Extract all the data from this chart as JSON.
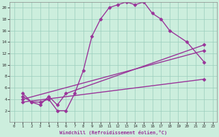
{
  "xlabel": "Windchill (Refroidissement éolien,°C)",
  "bg_color": "#cceedd",
  "line_color": "#993399",
  "grid_color": "#99ccbb",
  "xlim_min": -0.5,
  "xlim_max": 23.5,
  "ylim_min": 0,
  "ylim_max": 21,
  "xticks": [
    0,
    1,
    2,
    3,
    4,
    5,
    6,
    7,
    8,
    9,
    10,
    11,
    12,
    13,
    14,
    15,
    16,
    17,
    18,
    19,
    20,
    21,
    22,
    23
  ],
  "yticks": [
    2,
    4,
    6,
    8,
    10,
    12,
    14,
    16,
    18,
    20
  ],
  "curve1_x": [
    1,
    2,
    3,
    4,
    5,
    6,
    7,
    8,
    9,
    10,
    11,
    12,
    13,
    14,
    15,
    16,
    17,
    18,
    20,
    22
  ],
  "curve1_y": [
    5,
    3.5,
    3.5,
    4,
    2,
    2,
    5,
    9,
    15,
    18,
    20,
    20.5,
    21,
    20.5,
    21,
    19,
    18,
    16,
    14,
    10.5
  ],
  "curve2_x": [
    1,
    2,
    3,
    4,
    5,
    6,
    22
  ],
  "curve2_y": [
    4.5,
    3.5,
    3,
    4.5,
    3,
    5,
    13.5
  ],
  "curve3_x": [
    1,
    22
  ],
  "curve3_y": [
    4,
    12.5
  ],
  "curve4_x": [
    1,
    22
  ],
  "curve4_y": [
    3.5,
    7.5
  ],
  "marker": "D",
  "markersize": 2.5,
  "linewidth": 1.0
}
